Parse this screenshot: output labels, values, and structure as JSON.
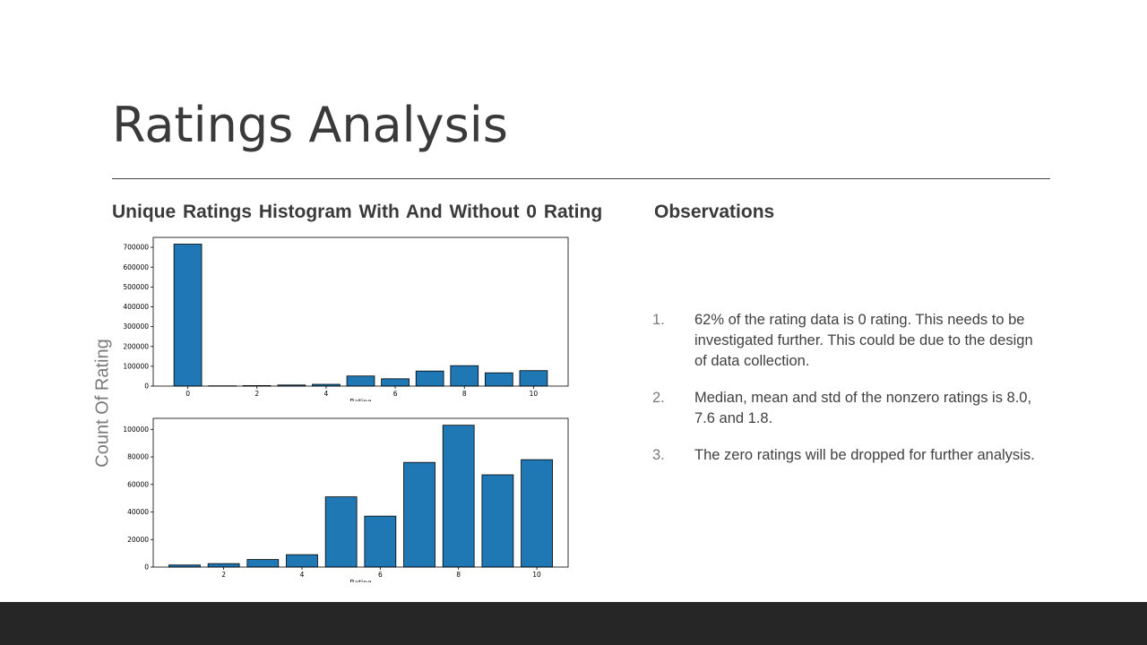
{
  "slide": {
    "title": "Ratings Analysis",
    "left_heading": "Unique Ratings Histogram With And Without 0 Rating",
    "right_heading": "Observations",
    "shared_ylabel": "Count Of Rating"
  },
  "observations": [
    {
      "num": "1.",
      "text": "62% of the rating data is 0 rating. This needs to be investigated further. This could be due to the design of data collection."
    },
    {
      "num": "2.",
      "text": "Median, mean and std of the nonzero ratings is 8.0, 7.6 and 1.8."
    },
    {
      "num": "3.",
      "text": "The zero ratings will be dropped for further analysis."
    }
  ],
  "colors": {
    "bar": "#1f77b4",
    "bar_edge": "#000000",
    "footer": "#262626"
  },
  "chart_data": [
    {
      "type": "bar",
      "x": [
        0,
        1,
        2,
        3,
        4,
        5,
        6,
        7,
        8,
        9,
        10
      ],
      "values": [
        716000,
        1500,
        2500,
        5500,
        9000,
        51000,
        37000,
        76000,
        103000,
        67000,
        78000
      ],
      "xlabel": "Rating",
      "ylabel": "",
      "xlim": [
        -1,
        11
      ],
      "ylim": [
        0,
        750000
      ],
      "xticks": [
        0,
        2,
        4,
        6,
        8,
        10
      ],
      "yticks": [
        0,
        100000,
        200000,
        300000,
        400000,
        500000,
        600000,
        700000
      ],
      "grid": false
    },
    {
      "type": "bar",
      "x": [
        1,
        2,
        3,
        4,
        5,
        6,
        7,
        8,
        9,
        10
      ],
      "values": [
        1500,
        2500,
        5500,
        9000,
        51000,
        37000,
        76000,
        103000,
        67000,
        78000
      ],
      "xlabel": "Rating",
      "ylabel": "",
      "xlim": [
        0.2,
        10.8
      ],
      "ylim": [
        0,
        108000
      ],
      "xticks": [
        2,
        4,
        6,
        8,
        10
      ],
      "yticks": [
        0,
        20000,
        40000,
        60000,
        80000,
        100000
      ],
      "grid": false
    }
  ]
}
